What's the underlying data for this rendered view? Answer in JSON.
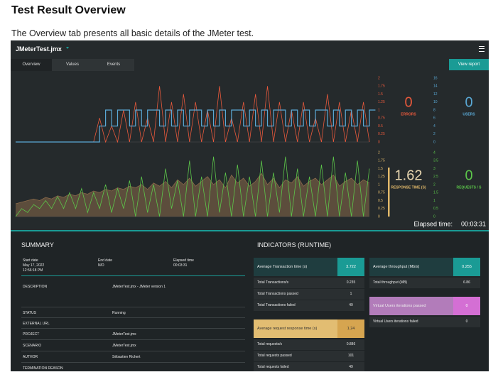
{
  "page": {
    "title": "Test Result Overview",
    "intro": "The Overview tab presents all basic details of the JMeter test."
  },
  "dashboard": {
    "file": "JMeterTest.jmx",
    "tabs": [
      "Overview",
      "Values",
      "Events"
    ],
    "view_report": "View report",
    "elapsed_label": "Elapsed time:",
    "elapsed": "00:03:31",
    "kpis": [
      {
        "value": 0,
        "label": "ERRORS",
        "color": "#e8593c"
      },
      {
        "value": 0,
        "label": "USERS",
        "color": "#5aa9d6"
      },
      {
        "value": 1.62,
        "label": "RESPONSE TIME (S)",
        "color": "#e0b86a"
      },
      {
        "value": 0,
        "label": "REQUESTS / S",
        "color": "#5cc64a"
      }
    ]
  },
  "chart_data": [
    {
      "type": "line",
      "ylim": [
        0,
        2
      ],
      "yticks": [
        0,
        0.25,
        0.5,
        0.75,
        1,
        1.25,
        1.5,
        1.75,
        2
      ],
      "y2lim": [
        0,
        16
      ],
      "y2ticks": [
        0,
        2,
        4,
        6,
        8,
        10,
        12,
        14,
        16
      ],
      "series": [
        {
          "color": "#e8593c",
          "values": [
            0,
            0,
            0,
            0,
            0,
            0,
            0,
            0,
            0,
            0,
            0,
            0,
            0,
            0,
            0.75,
            0,
            0.5,
            0,
            1,
            0,
            1.25,
            0,
            0.75,
            0,
            1.75,
            0,
            1.25,
            0,
            1.5,
            0,
            1.25,
            0,
            1,
            0,
            1.75,
            0,
            0.75,
            0,
            1.25,
            0,
            1.5,
            0,
            1.75,
            0,
            1.25,
            0,
            1,
            0,
            1.25,
            0,
            0.75,
            0,
            1.5,
            0,
            1.25,
            0,
            1,
            0,
            1.25,
            0
          ]
        },
        {
          "color": "#5aa9d6",
          "axis": "y2",
          "step": true,
          "values": [
            0,
            0,
            0,
            0,
            0,
            0,
            0,
            0,
            0,
            0,
            0,
            0,
            0,
            0,
            4,
            8,
            4,
            8,
            8,
            4,
            8,
            4,
            8,
            8,
            4,
            8,
            4,
            8,
            4,
            8,
            8,
            4,
            8,
            4,
            8,
            4,
            8,
            8,
            4,
            8,
            4,
            8,
            4,
            8,
            8,
            4,
            8,
            4,
            8,
            4,
            8,
            8,
            4,
            8,
            4,
            8,
            4,
            8,
            4,
            8
          ]
        }
      ]
    },
    {
      "type": "line",
      "ylim": [
        0,
        2
      ],
      "yticks": [
        0,
        0.25,
        0.5,
        0.75,
        1,
        1.25,
        1.5,
        1.75,
        2
      ],
      "y2lim": [
        0,
        4
      ],
      "y2ticks": [
        0,
        0.5,
        1,
        1.5,
        2,
        2.5,
        3,
        3.5,
        4
      ],
      "series": [
        {
          "color": "#8a6a4a",
          "area": true,
          "values": [
            0.4,
            0.45,
            0.5,
            0.55,
            0.5,
            0.6,
            0.55,
            0.65,
            0.6,
            0.7,
            0.65,
            0.75,
            0.7,
            0.8,
            0.75,
            0.85,
            0.8,
            0.9,
            0.85,
            0.95,
            0.9,
            1,
            0.85,
            1.05,
            0.95,
            1.1,
            0.9,
            1.15,
            1,
            1.2,
            0.95,
            1.1,
            1.25,
            1,
            1.15,
            0.9,
            1.3,
            1.05,
            1.2,
            0.95,
            1.1,
            1.35,
            1,
            1.2,
            0.9,
            1.15,
            1.05,
            1.25,
            0.95,
            1.1,
            1.2,
            1,
            1.15,
            1.3,
            0.95,
            1.1,
            1.2,
            1,
            1.15,
            1.05
          ]
        },
        {
          "color": "#5cc64a",
          "axis": "y2",
          "values": [
            0,
            0.5,
            0.25,
            0.75,
            0.5,
            1,
            0.5,
            1.25,
            0.5,
            1.5,
            0.5,
            1.75,
            0.25,
            1.5,
            0.5,
            2,
            0.25,
            1.75,
            0.5,
            2.25,
            0,
            2.5,
            0.25,
            2,
            0,
            3,
            0.5,
            2.25,
            0,
            3.5,
            0,
            2.5,
            0,
            3.75,
            0.25,
            2.75,
            0,
            3.25,
            0,
            2.5,
            0,
            3.5,
            0,
            2.75,
            0.25,
            3.75,
            0,
            3,
            0,
            2.5,
            0,
            3.25,
            0,
            3.75,
            0,
            2.75,
            0,
            3.5,
            0,
            3
          ]
        }
      ]
    }
  ],
  "summary": {
    "title": "SUMMARY",
    "meta": [
      {
        "label": "Start date",
        "value": "May 17, 2022 12:56:18 PM"
      },
      {
        "label": "End date",
        "value": "N/D"
      },
      {
        "label": "Elapsed time",
        "value": "00:03:31"
      }
    ],
    "rows": [
      {
        "label": "DESCRIPTION",
        "value": "JMeterTest.jmx - JMeter version 1"
      },
      {
        "label": "STATUS",
        "value": "Running"
      },
      {
        "label": "EXTERNAL URL"
      },
      {
        "label": "PROJECT",
        "value": "JMeterTest.jmx"
      },
      {
        "label": "SCENARIO",
        "value": "JMeterTest.jmx"
      },
      {
        "label": "AUTHOR",
        "value": "Sébastien Richert"
      },
      {
        "label": "TERMINATION REASON"
      }
    ]
  },
  "indicators": {
    "title": "INDICATORS (RUNTIME)",
    "groups": [
      {
        "label": "Average Transaction time (s)",
        "value": 3.722,
        "color": "#1f3d3f",
        "accent": "#1a9b95",
        "rows": [
          {
            "label": "Total Transactions/s",
            "value": 0.235
          },
          {
            "label": "Total Transactions passed",
            "value": 1
          },
          {
            "label": "Total Transactions failed",
            "value": 49
          }
        ]
      },
      {
        "label": "Average request response time (s)",
        "value": 1.24,
        "color": "#e2bd72",
        "accent": "#d6a550",
        "rows": [
          {
            "label": "Total requests/s",
            "value": 0.886
          },
          {
            "label": "Total requests passed",
            "value": 101
          },
          {
            "label": "Total requests failed",
            "value": 49
          }
        ]
      },
      {
        "label": "Average throughput (Mb/s)",
        "value": 0.255,
        "color": "#1f3d3f",
        "accent": "#1a9b95",
        "rows": [
          {
            "label": "Total throughput (MB)",
            "value": 6.86
          }
        ]
      },
      {
        "label": "Virtual Users iterations passed",
        "value": 0,
        "color": "#b27cba",
        "accent": "#d46fd4",
        "rows": [
          {
            "label": "Virtual Users iterations failed",
            "value": 0
          }
        ]
      }
    ]
  }
}
